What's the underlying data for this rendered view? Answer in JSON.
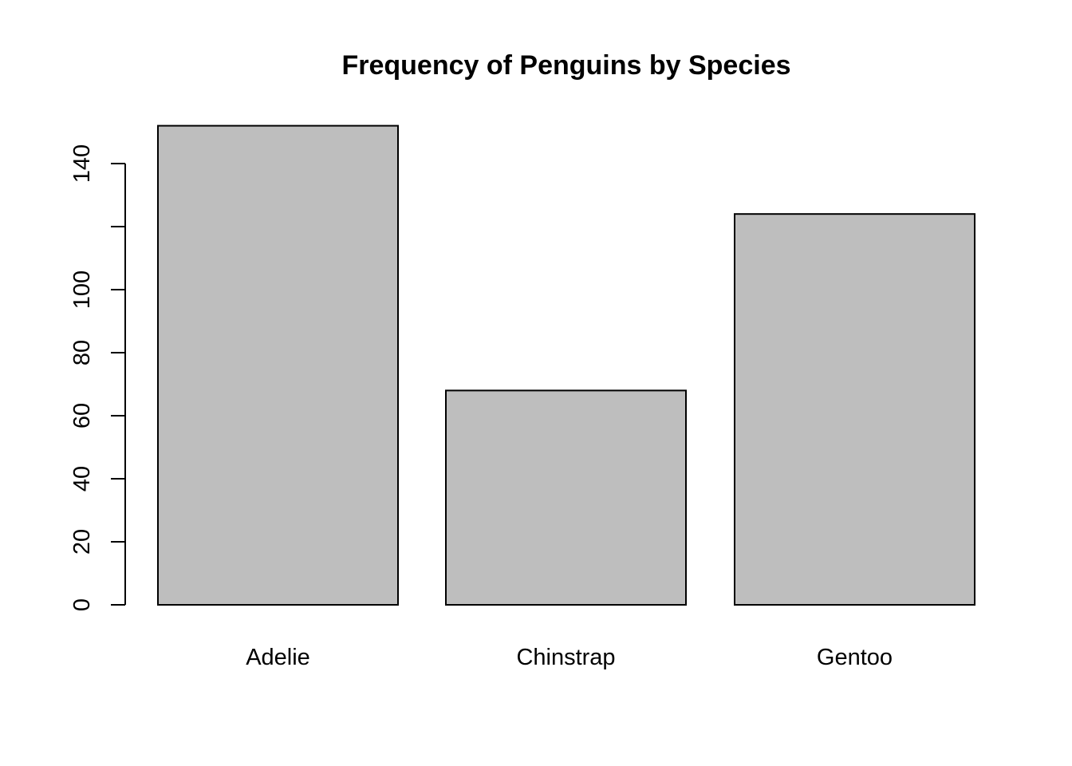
{
  "chart_data": {
    "type": "bar",
    "title": "Frequency of Penguins by Species",
    "xlabel": "",
    "ylabel": "",
    "categories": [
      "Adelie",
      "Chinstrap",
      "Gentoo"
    ],
    "values": [
      152,
      68,
      124
    ],
    "y_ticks": [
      0,
      20,
      40,
      60,
      80,
      100,
      120,
      140
    ],
    "y_tick_labels": [
      "0",
      "20",
      "40",
      "60",
      "80",
      "100",
      "",
      "140"
    ],
    "ylim": [
      0,
      152
    ],
    "grid": false,
    "legend": "none",
    "bar_color": "#bebebe",
    "border_color": "#000000"
  }
}
